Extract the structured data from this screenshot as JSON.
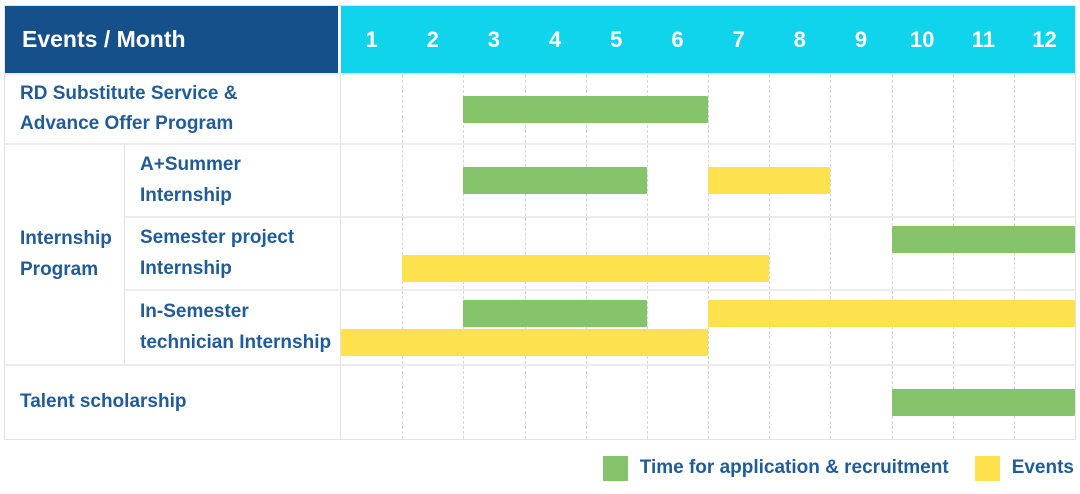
{
  "colors": {
    "header_bg": "#15508b",
    "months_bg": "#0fd4ec",
    "label_text": "#1f5c99",
    "green": "#85c46a",
    "yellow": "#fde24d"
  },
  "header": {
    "title": "Events / Month",
    "months": [
      "1",
      "2",
      "3",
      "4",
      "5",
      "6",
      "7",
      "8",
      "9",
      "10",
      "11",
      "12"
    ]
  },
  "group": {
    "label": "Internship\nProgram"
  },
  "rows": [
    {
      "label": "RD Substitute Service &\nAdvance Offer Program",
      "lines": [
        [
          {
            "type": "application",
            "start": 3,
            "end": 6
          }
        ]
      ]
    },
    {
      "label": "A+Summer\nInternship",
      "lines": [
        [
          {
            "type": "application",
            "start": 3,
            "end": 5
          },
          {
            "type": "events",
            "start": 7,
            "end": 8
          }
        ]
      ]
    },
    {
      "label": "Semester project\nInternship",
      "lines": [
        [
          {
            "type": "application",
            "start": 10,
            "end": 12
          }
        ],
        [
          {
            "type": "events",
            "start": 2,
            "end": 7
          }
        ]
      ]
    },
    {
      "label": "In-Semester\ntechnician Internship",
      "lines": [
        [
          {
            "type": "application",
            "start": 3,
            "end": 5
          },
          {
            "type": "events",
            "start": 7,
            "end": 12
          }
        ],
        [
          {
            "type": "events",
            "start": 1,
            "end": 6
          }
        ]
      ]
    },
    {
      "label": "Talent scholarship",
      "lines": [
        [
          {
            "type": "application",
            "start": 10,
            "end": 12
          }
        ]
      ]
    }
  ],
  "legend": {
    "items": [
      {
        "key": "application",
        "label": "Time for application & recruitment"
      },
      {
        "key": "events",
        "label": "Events"
      }
    ]
  },
  "chart_data": {
    "type": "table",
    "title": "Events / Month",
    "xlabel": "Month",
    "x_ticks": [
      1,
      2,
      3,
      4,
      5,
      6,
      7,
      8,
      9,
      10,
      11,
      12
    ],
    "legend": [
      "Time for application & recruitment",
      "Events"
    ],
    "rows": [
      {
        "event": "RD Substitute Service & Advance Offer Program",
        "group": "",
        "application_recruitment_month_spans": [
          [
            3,
            6
          ]
        ],
        "events_month_spans": []
      },
      {
        "event": "A+Summer Internship",
        "group": "Internship Program",
        "application_recruitment_month_spans": [
          [
            3,
            5
          ]
        ],
        "events_month_spans": [
          [
            7,
            8
          ]
        ]
      },
      {
        "event": "Semester project Internship",
        "group": "Internship Program",
        "application_recruitment_month_spans": [
          [
            10,
            12
          ]
        ],
        "events_month_spans": [
          [
            2,
            7
          ]
        ]
      },
      {
        "event": "In-Semester technician Internship",
        "group": "Internship Program",
        "application_recruitment_month_spans": [
          [
            3,
            5
          ]
        ],
        "events_month_spans": [
          [
            7,
            12
          ],
          [
            1,
            6
          ]
        ]
      },
      {
        "event": "Talent scholarship",
        "group": "",
        "application_recruitment_month_spans": [
          [
            10,
            12
          ]
        ],
        "events_month_spans": []
      }
    ]
  }
}
